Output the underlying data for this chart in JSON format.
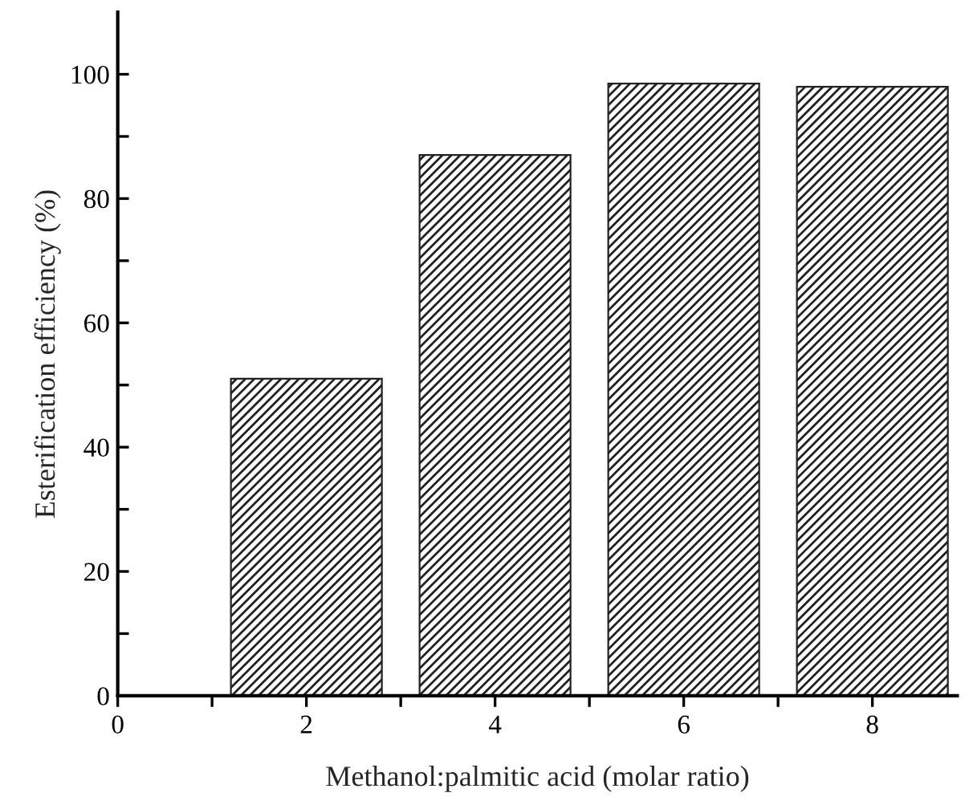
{
  "chart_data": {
    "type": "bar",
    "xlabel": "Methanol:palmitic acid (molar ratio)",
    "ylabel": "Esterification efficiency (%)",
    "x": [
      2,
      4,
      6,
      8
    ],
    "values": [
      51,
      87,
      98.5,
      98
    ],
    "color": "#222222",
    "xlim": [
      0,
      8.9
    ],
    "ylim": [
      0,
      110
    ],
    "xticks": [
      0,
      {
        "value": 1,
        "label": null
      },
      2,
      {
        "value": 3,
        "label": null
      },
      4,
      {
        "value": 5,
        "label": null
      },
      6,
      {
        "value": 7,
        "label": null
      },
      8
    ],
    "yticks": [
      0,
      {
        "value": 10,
        "label": null
      },
      20,
      {
        "value": 30,
        "label": null
      },
      40,
      {
        "value": 50,
        "label": null
      },
      60,
      {
        "value": 70,
        "label": null
      },
      80,
      {
        "value": 90,
        "label": null
      },
      100
    ],
    "grid": false,
    "legend": false
  }
}
